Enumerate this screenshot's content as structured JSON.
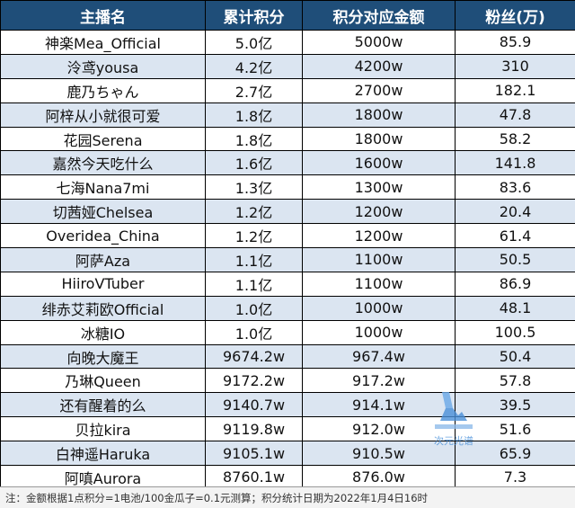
{
  "table": {
    "headers": [
      "主播名",
      "累计积分",
      "积分对应金额",
      "粉丝(万)"
    ],
    "rows": [
      [
        "神楽Mea_Official",
        "5.0亿",
        "5000w",
        "85.9"
      ],
      [
        "泠鸢yousa",
        "4.2亿",
        "4200w",
        "310"
      ],
      [
        "鹿乃ちゃん",
        "2.7亿",
        "2700w",
        "182.1"
      ],
      [
        "阿梓从小就很可爱",
        "1.8亿",
        "1800w",
        "47.8"
      ],
      [
        "花园Serena",
        "1.8亿",
        "1800w",
        "58.2"
      ],
      [
        "嘉然今天吃什么",
        "1.6亿",
        "1600w",
        "141.8"
      ],
      [
        "七海Nana7mi",
        "1.3亿",
        "1300w",
        "83.6"
      ],
      [
        "切茜娅Chelsea",
        "1.2亿",
        "1200w",
        "20.4"
      ],
      [
        "Overidea_China",
        "1.2亿",
        "1200w",
        "61.4"
      ],
      [
        "阿萨Aza",
        "1.1亿",
        "1100w",
        "50.5"
      ],
      [
        "HiiroVTuber",
        "1.1亿",
        "1100w",
        "86.9"
      ],
      [
        "绯赤艾莉欧Official",
        "1.0亿",
        "1000w",
        "48.1"
      ],
      [
        "冰糖IO",
        "1.0亿",
        "1000w",
        "100.5"
      ],
      [
        "向晚大魔王",
        "9674.2w",
        "967.4w",
        "50.4"
      ],
      [
        "乃琳Queen",
        "9172.2w",
        "917.2w",
        "57.8"
      ],
      [
        "还有醒着的么",
        "9140.7w",
        "914.1w",
        "39.5"
      ],
      [
        "贝拉kira",
        "9119.8w",
        "912.0w",
        "51.6"
      ],
      [
        "白神遥Haruka",
        "9105.1w",
        "910.5w",
        "65.9"
      ],
      [
        "阿嗔Aurora",
        "8760.1w",
        "876.0w",
        "7.3"
      ]
    ]
  },
  "footer": {
    "note": "注：金额根据1点积分=1电池/100金瓜子=0.1元测算；积分统计日期为2022年1月4日16时"
  },
  "watermark": {
    "text": "次元光谱",
    "icon": "logo-icon"
  },
  "colors": {
    "header_bg": "#1f4e79",
    "header_text": "#ffffff",
    "row_alt_bg": "#dbe5f1",
    "row_bg": "#ffffff",
    "watermark": "#4a90d9"
  }
}
